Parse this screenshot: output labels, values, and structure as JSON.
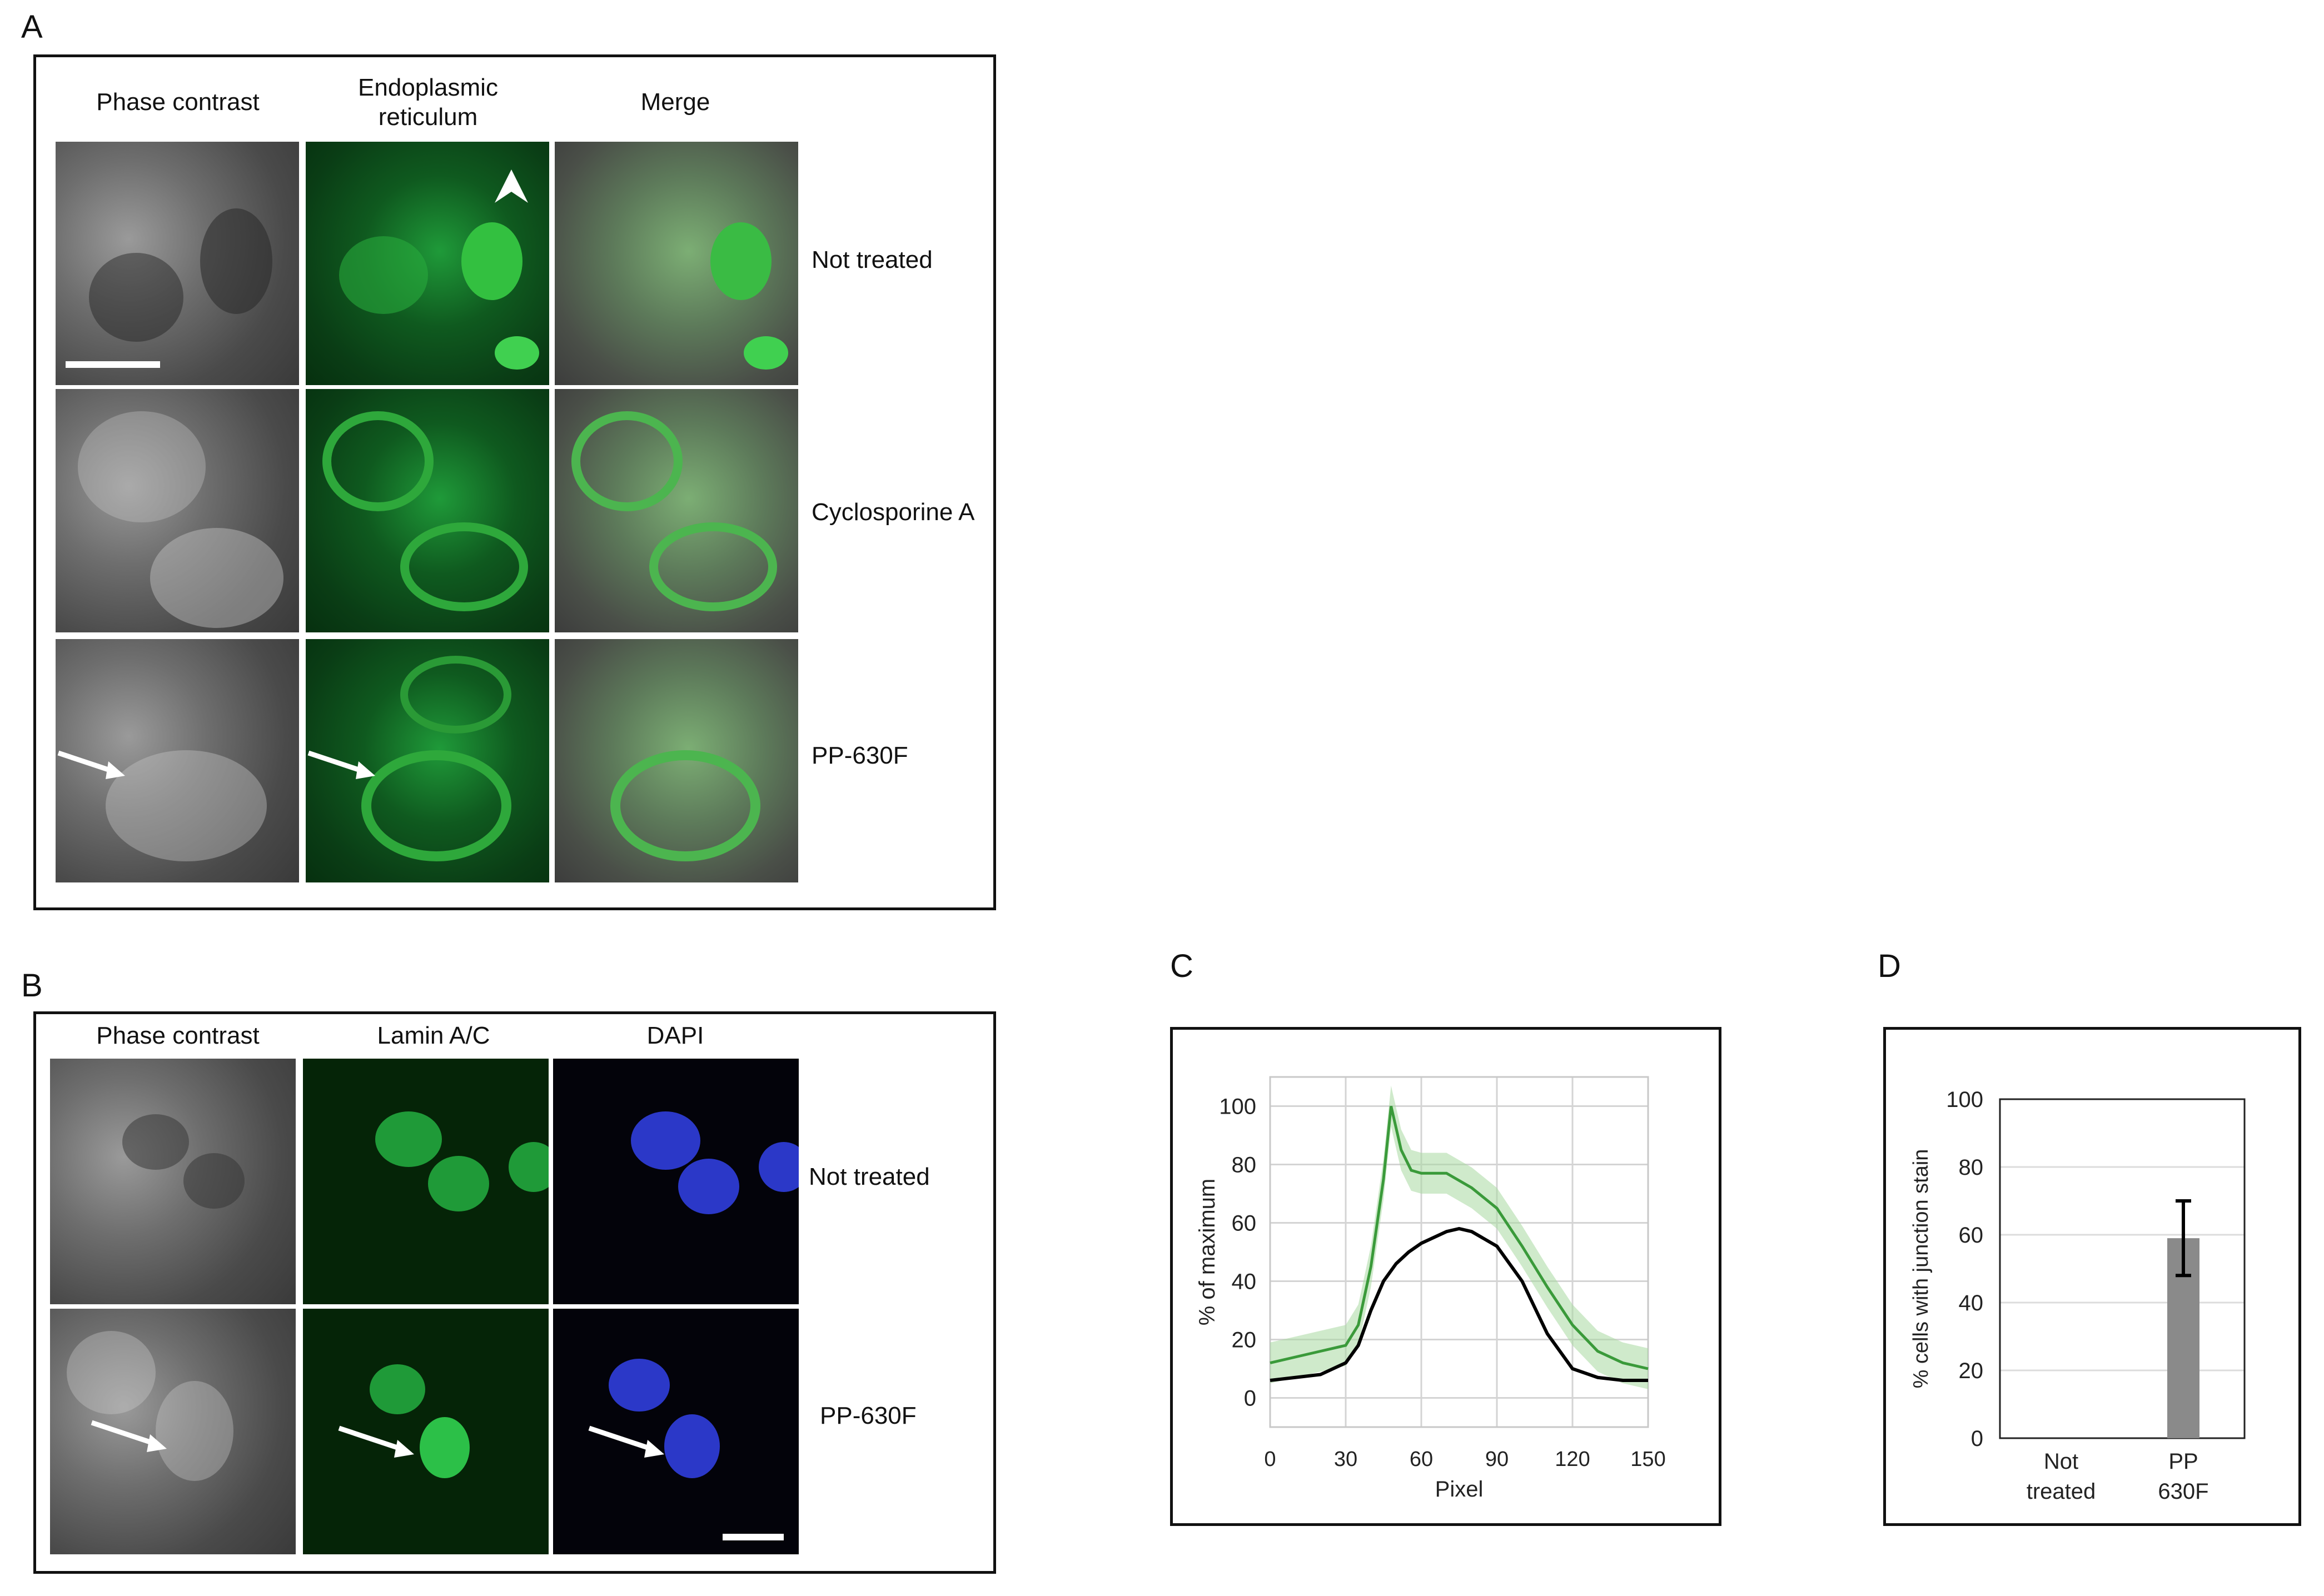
{
  "panel_a": {
    "label": "A",
    "columns": [
      "Phase contrast",
      "Endoplasmic\nreticulum",
      "Merge"
    ],
    "rows": [
      "Not treated",
      "Cyclosporine A",
      "PP-630F"
    ]
  },
  "panel_b": {
    "label": "B",
    "columns": [
      "Phase contrast",
      "Lamin A/C",
      "DAPI"
    ],
    "rows": [
      "Not treated",
      "PP-630F"
    ]
  },
  "panel_c": {
    "label": "C",
    "chart_data": {
      "type": "line",
      "xlabel": "Pixel",
      "ylabel": "% of maximum",
      "xticks": [
        "0",
        "30",
        "60",
        "90",
        "120",
        "150"
      ],
      "yticks": [
        "0",
        "20",
        "40",
        "60",
        "80",
        "100"
      ],
      "xlim": [
        0,
        150
      ],
      "ylim": [
        -10,
        110
      ],
      "grid": true,
      "colors": {
        "green": "#3a9a3a",
        "black": "#000000",
        "band": "#a8d8a0"
      },
      "series": [
        {
          "color": "green",
          "x": [
            0,
            10,
            20,
            30,
            35,
            40,
            45,
            48,
            52,
            56,
            60,
            70,
            80,
            90,
            100,
            110,
            120,
            130,
            140,
            150
          ],
          "y": [
            12,
            14,
            16,
            18,
            25,
            45,
            75,
            100,
            85,
            78,
            77,
            77,
            72,
            65,
            52,
            38,
            25,
            16,
            12,
            10
          ]
        },
        {
          "color": "black",
          "x": [
            0,
            10,
            20,
            30,
            35,
            40,
            45,
            50,
            55,
            60,
            65,
            70,
            75,
            80,
            90,
            100,
            110,
            120,
            130,
            140,
            150
          ],
          "y": [
            6,
            7,
            8,
            12,
            18,
            30,
            40,
            46,
            50,
            53,
            55,
            57,
            58,
            57,
            52,
            40,
            22,
            10,
            7,
            6,
            6
          ]
        }
      ]
    }
  },
  "panel_d": {
    "label": "D",
    "chart_data": {
      "type": "bar",
      "categories": [
        "Not\ntreated",
        "PP\n630F"
      ],
      "values": [
        0,
        59
      ],
      "errors": [
        0,
        11
      ],
      "ylabel": "% cells with junction stain",
      "yticks": [
        "0",
        "20",
        "40",
        "60",
        "80",
        "100"
      ],
      "ylim": [
        0,
        100
      ],
      "grid": true,
      "colors": {
        "bar": "#8a8a8a",
        "error": "#000000"
      }
    }
  }
}
